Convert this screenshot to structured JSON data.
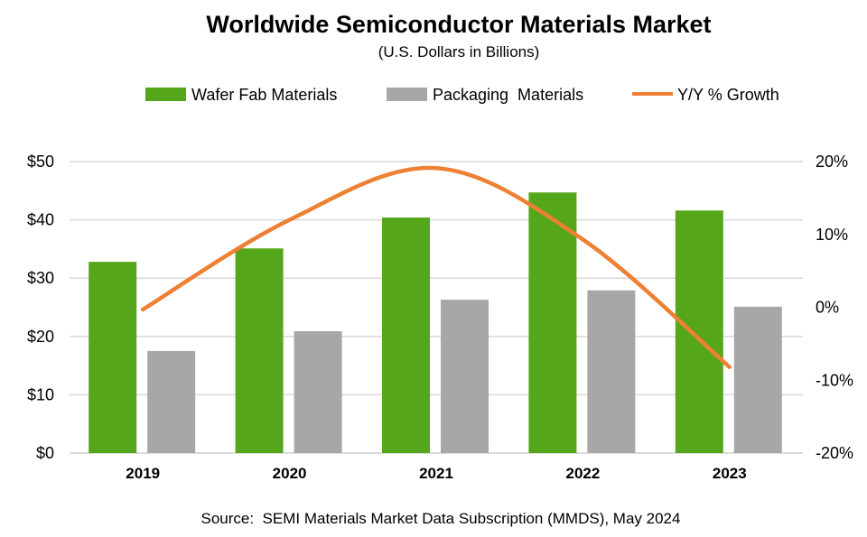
{
  "chart_data": {
    "type": "bar",
    "title": "Worldwide Semiconductor Materials Market",
    "subtitle": "(U.S. Dollars in Billions)",
    "source": "Source:  SEMI Materials Market Data Subscription (MMDS), May 2024",
    "categories": [
      "2019",
      "2020",
      "2021",
      "2022",
      "2023"
    ],
    "series": [
      {
        "name": "Wafer Fab Materials",
        "type": "bar",
        "axis": "left",
        "color": "#55a61a",
        "values": [
          32.8,
          35.1,
          40.4,
          44.7,
          41.6
        ]
      },
      {
        "name": "Packaging  Materials",
        "type": "bar",
        "axis": "left",
        "color": "#a6a7a6",
        "values": [
          17.5,
          20.9,
          26.3,
          27.9,
          25.1
        ]
      },
      {
        "name": "Y/Y % Growth",
        "type": "line",
        "axis": "right",
        "color": "#ee8033",
        "values": [
          -0.3,
          12.0,
          19.1,
          9.3,
          -8.2
        ]
      }
    ],
    "y_left": {
      "ylim": [
        0,
        50
      ],
      "ticks": [
        0,
        10,
        20,
        30,
        40,
        50
      ],
      "tick_labels": [
        "$0",
        "$10",
        "$20",
        "$30",
        "$40",
        "$50"
      ]
    },
    "y_right": {
      "ylim": [
        -20,
        20
      ],
      "ticks": [
        -20,
        -10,
        0,
        10,
        20
      ],
      "tick_labels": [
        "-20%",
        "-10%",
        "0%",
        "10%",
        "20%"
      ]
    },
    "grid": true,
    "legend": "top"
  }
}
